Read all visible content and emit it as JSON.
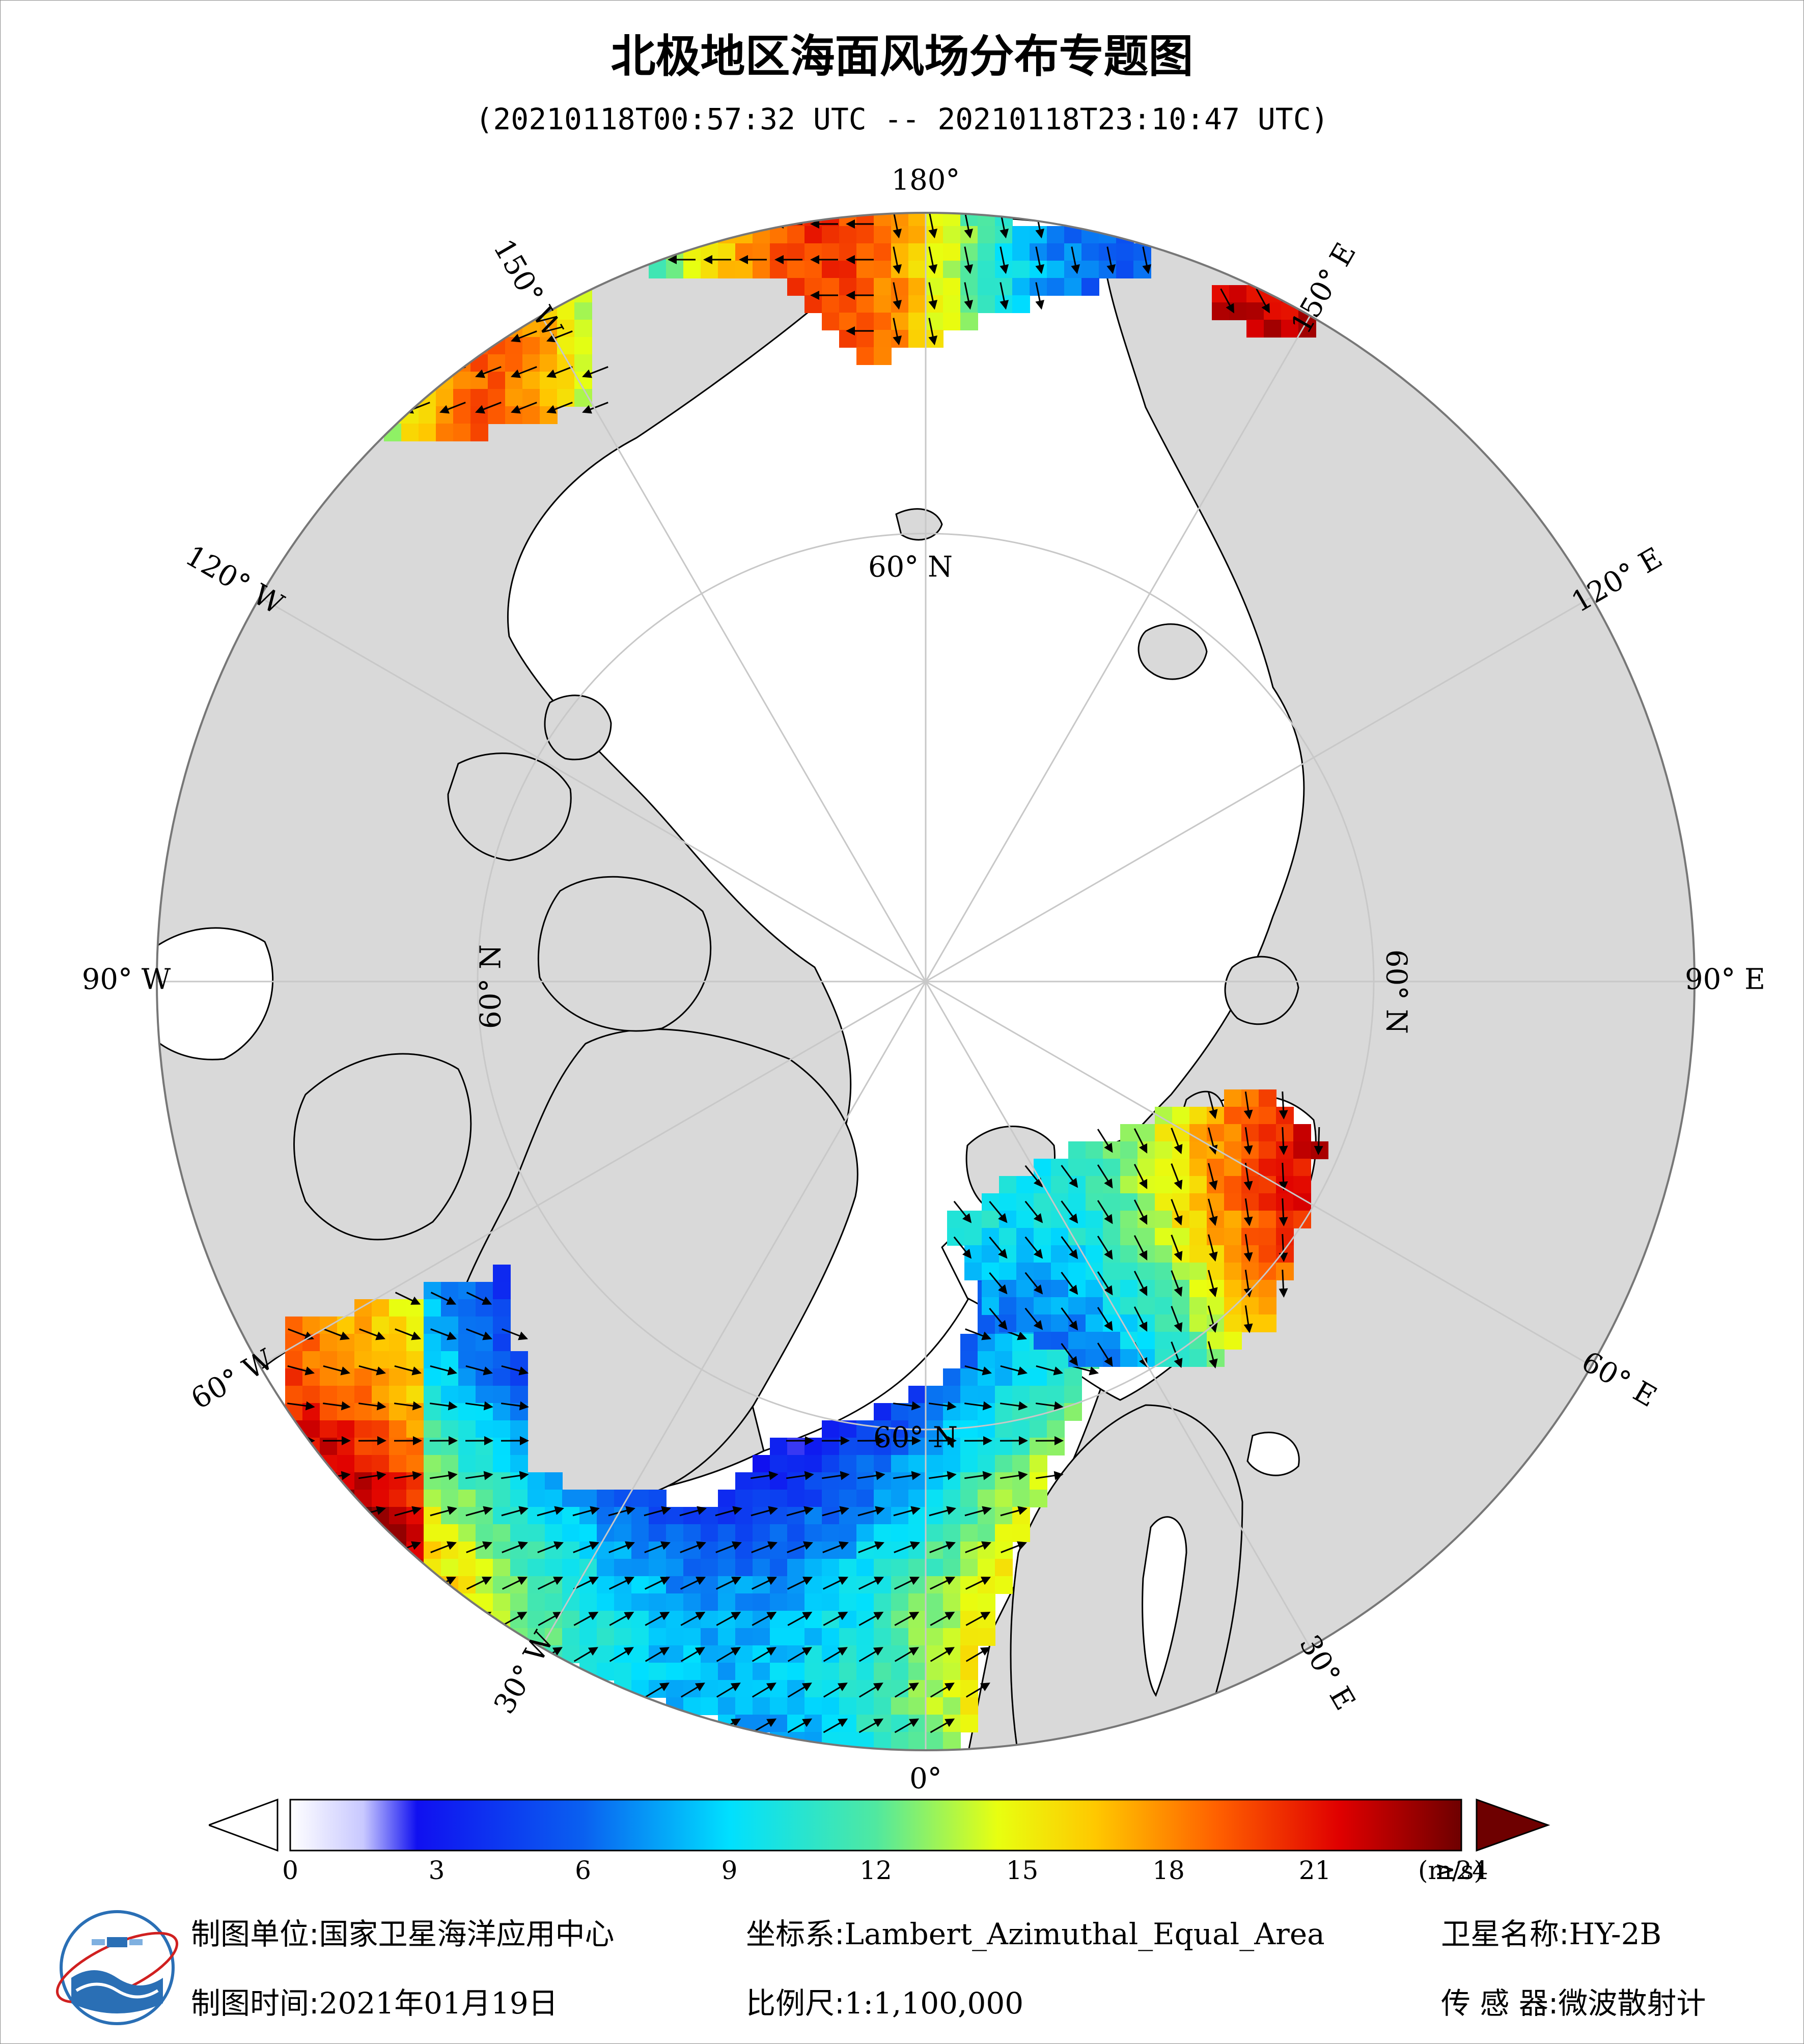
{
  "title": "北极地区海面风场分布专题图",
  "subtitle": "(20210118T00:57:32 UTC -- 20210118T23:10:47 UTC)",
  "map": {
    "projection": "Lambert_Azimuthal_Equal_Area",
    "pole": "north",
    "longitude_labels": [
      {
        "lon": 180,
        "text": "180°"
      },
      {
        "lon": -150,
        "text": "150° W"
      },
      {
        "lon": -120,
        "text": "120° W"
      },
      {
        "lon": -90,
        "text": "90° W"
      },
      {
        "lon": -60,
        "text": "60° W"
      },
      {
        "lon": -30,
        "text": "30° W"
      },
      {
        "lon": 0,
        "text": "0°"
      },
      {
        "lon": 30,
        "text": "30° E"
      },
      {
        "lon": 60,
        "text": "60° E"
      },
      {
        "lon": 90,
        "text": "90° E"
      },
      {
        "lon": 120,
        "text": "120° E"
      },
      {
        "lon": 150,
        "text": "150° E"
      }
    ],
    "latitude_labels": [
      {
        "text": "60° N",
        "position": "north"
      },
      {
        "text": "60° N",
        "position": "east"
      },
      {
        "text": "60° N",
        "position": "west"
      },
      {
        "text": "60° N",
        "position": "south"
      }
    ],
    "colors": {
      "ocean": "#ffffff",
      "land": "#d9d9d9",
      "coast": "#000000",
      "graticule": "#c8c8c8",
      "arrow": "#000000"
    }
  },
  "colorbar": {
    "min": 0,
    "max": 24,
    "ticks": [
      "0",
      "3",
      "6",
      "9",
      "12",
      "15",
      "18",
      "21",
      "≥24"
    ],
    "unit": "(m/s)",
    "stops": [
      {
        "v": 0,
        "c": "#ffffff"
      },
      {
        "v": 1.5,
        "c": "#c8c8ff"
      },
      {
        "v": 2.6,
        "c": "#1010f0"
      },
      {
        "v": 6,
        "c": "#0a60f0"
      },
      {
        "v": 9,
        "c": "#00e0ff"
      },
      {
        "v": 12,
        "c": "#50e8a0"
      },
      {
        "v": 14.5,
        "c": "#e8ff10"
      },
      {
        "v": 16.5,
        "c": "#ffc800"
      },
      {
        "v": 19,
        "c": "#ff6000"
      },
      {
        "v": 21.5,
        "c": "#e00000"
      },
      {
        "v": 24,
        "c": "#6e0000"
      }
    ]
  },
  "footer": {
    "unit_label": "制图单位:",
    "unit_value": "国家卫星海洋应用中心",
    "time_label": "制图时间:",
    "time_value": "2021年01月19日",
    "crs_label": "坐标系:",
    "crs_value": "Lambert_Azimuthal_Equal_Area",
    "scale_label": "比例尺:",
    "scale_value": "1:1,100,000",
    "sat_label": "卫星名称:",
    "sat_value": "HY-2B",
    "sensor_label": "传 感 器:",
    "sensor_value": "微波散射计"
  }
}
